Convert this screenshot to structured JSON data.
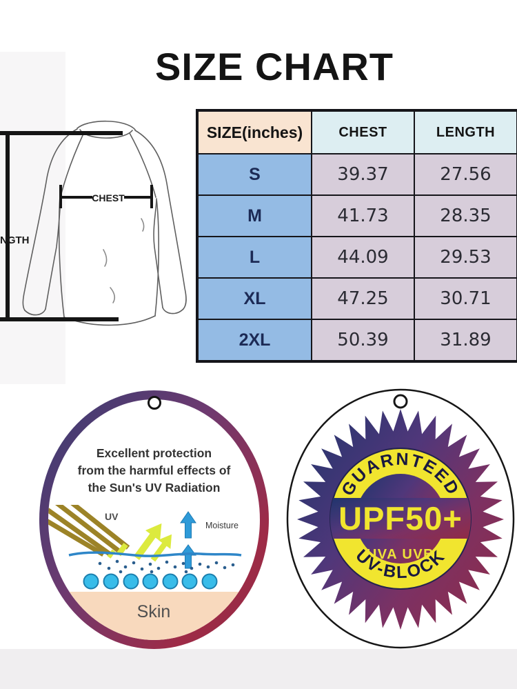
{
  "title": "SIZE CHART",
  "garment_diagram": {
    "chest_label": "CHEST",
    "length_label": "NGTH"
  },
  "size_table": {
    "columns": [
      "SIZE(inches)",
      "CHEST",
      "LENGTH"
    ],
    "rows": [
      {
        "size": "S",
        "chest": "39.37",
        "length": "27.56"
      },
      {
        "size": "M",
        "chest": "41.73",
        "length": "28.35"
      },
      {
        "size": "L",
        "chest": "44.09",
        "length": "29.53"
      },
      {
        "size": "XL",
        "chest": "47.25",
        "length": "30.71"
      },
      {
        "size": "2XL",
        "chest": "50.39",
        "length": "31.89"
      }
    ]
  },
  "uv_protection_tag": {
    "description_lines": [
      "Excellent protection",
      "from the harmful effects of",
      "the Sun's UV Radiation"
    ],
    "uv_label": "UV",
    "moisture_label": "Moisture",
    "skin_label": "Skin"
  },
  "upf_badge_tag": {
    "top_arc_text": "GUARNTEED",
    "rating_text": "UPF50+",
    "spectrum_text": "UVA UVB",
    "bottom_arc_text": "UV-BLOCK"
  },
  "colors": {
    "table_header_size_bg": "#f9e4d1",
    "table_header_measure_bg": "#ddeef2",
    "table_size_cell_bg": "#94bbe4",
    "table_value_cell_bg": "#d7cdda",
    "tag_ring_indigo": "#403c72",
    "tag_ring_crimson": "#9e2b47",
    "badge_navy": "#24356e",
    "badge_maroon": "#8f2c49",
    "badge_yellow": "#f1e52f",
    "uv_ray_gold": "#9c8327",
    "reflected_ray_green": "#dcea3e",
    "moisture_blue": "#2e9ad8",
    "skin_pink": "#f8d9bd"
  }
}
